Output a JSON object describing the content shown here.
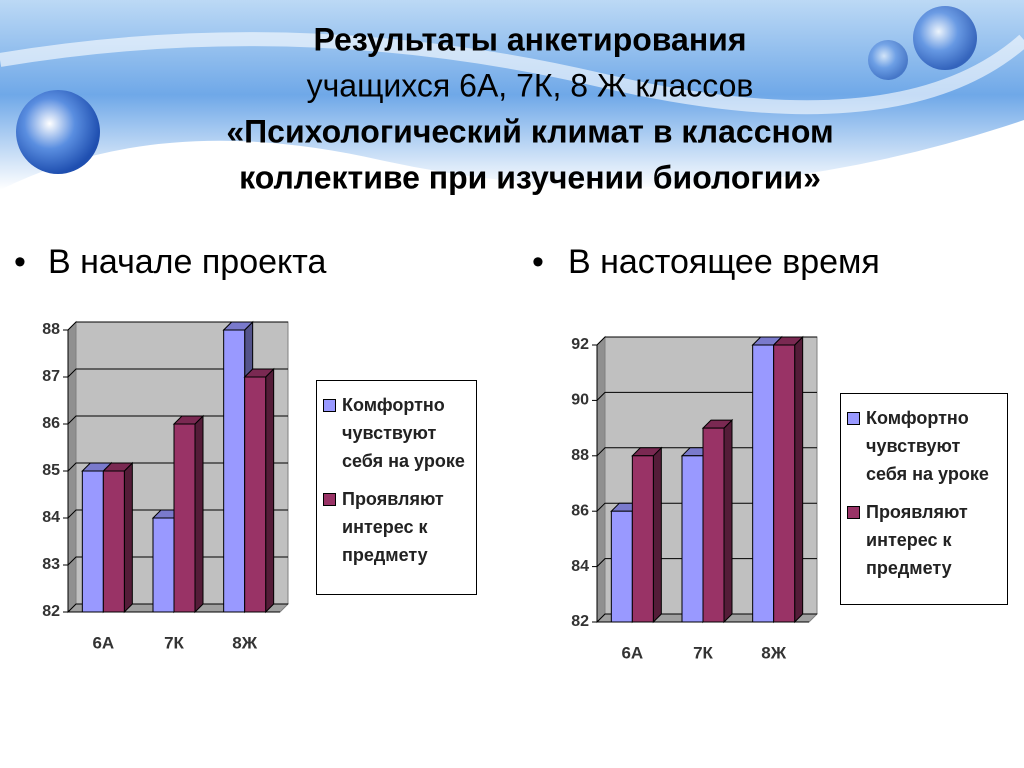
{
  "title": [
    "Результаты анкетирования",
    "учащихся 6А, 7К, 8 Ж классов",
    "«Психологический климат в классном",
    "коллективе при изучении биологии»"
  ],
  "chart_data": [
    {
      "type": "bar",
      "subtitle": "В начале проекта",
      "categories": [
        "6А",
        "7К",
        "8Ж"
      ],
      "series": [
        {
          "name": "Комфортно чувствуют себя на уроке",
          "color": "#9999ff",
          "values": [
            85,
            84,
            88
          ]
        },
        {
          "name": "Проявляют интерес к предмету",
          "color": "#993366",
          "values": [
            85,
            86,
            87
          ]
        }
      ],
      "ylim": [
        82,
        88
      ],
      "yticks": [
        82,
        83,
        84,
        85,
        86,
        87,
        88
      ],
      "grid": true,
      "legend": "right"
    },
    {
      "type": "bar",
      "subtitle": "В настоящее время",
      "categories": [
        "6А",
        "7К",
        "8Ж"
      ],
      "series": [
        {
          "name": "Комфортно чувствуют себя на уроке",
          "color": "#9999ff",
          "values": [
            86,
            88,
            92
          ]
        },
        {
          "name": "Проявляют интерес к предмету",
          "color": "#993366",
          "values": [
            88,
            89,
            92
          ]
        }
      ],
      "ylim": [
        82,
        92
      ],
      "yticks": [
        82,
        84,
        86,
        88,
        90,
        92
      ],
      "grid": true,
      "legend": "right"
    }
  ]
}
